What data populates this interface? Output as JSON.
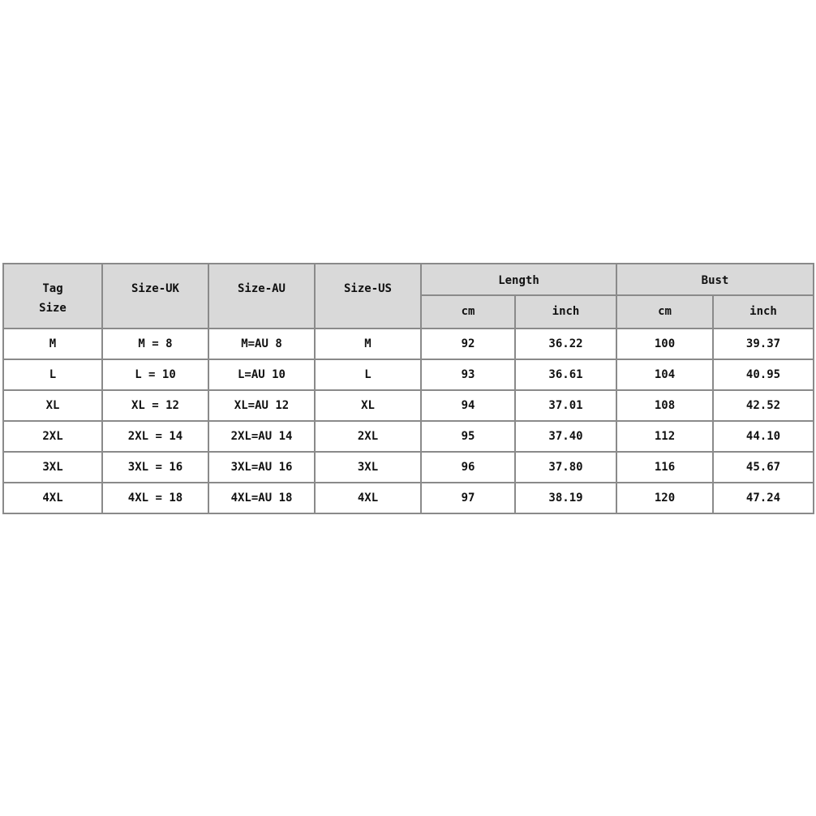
{
  "headers": {
    "tag_size": "Tag Size",
    "size_uk": "Size-UK",
    "size_au": "Size-AU",
    "size_us": "Size-US",
    "length": "Length",
    "bust": "Bust",
    "length_cm": "cm",
    "length_inch": "inch",
    "bust_cm": "cm",
    "bust_inch": "inch"
  },
  "rows": [
    [
      "M",
      "M = 8",
      "M=AU 8",
      "M",
      "92",
      "36.22",
      "100",
      "39.37"
    ],
    [
      "L",
      "L = 10",
      "L=AU 10",
      "L",
      "93",
      "36.61",
      "104",
      "40.95"
    ],
    [
      "XL",
      "XL = 12",
      "XL=AU 12",
      "XL",
      "94",
      "37.01",
      "108",
      "42.52"
    ],
    [
      "2XL",
      "2XL = 14",
      "2XL=AU 14",
      "2XL",
      "95",
      "37.40",
      "112",
      "44.10"
    ],
    [
      "3XL",
      "3XL = 16",
      "3XL=AU 16",
      "3XL",
      "96",
      "37.80",
      "116",
      "45.67"
    ],
    [
      "4XL",
      "4XL = 18",
      "4XL=AU 18",
      "4XL",
      "97",
      "38.19",
      "120",
      "47.24"
    ]
  ],
  "colors": {
    "header_bg": "#d9d9d9",
    "border": "#8a8a8a"
  }
}
